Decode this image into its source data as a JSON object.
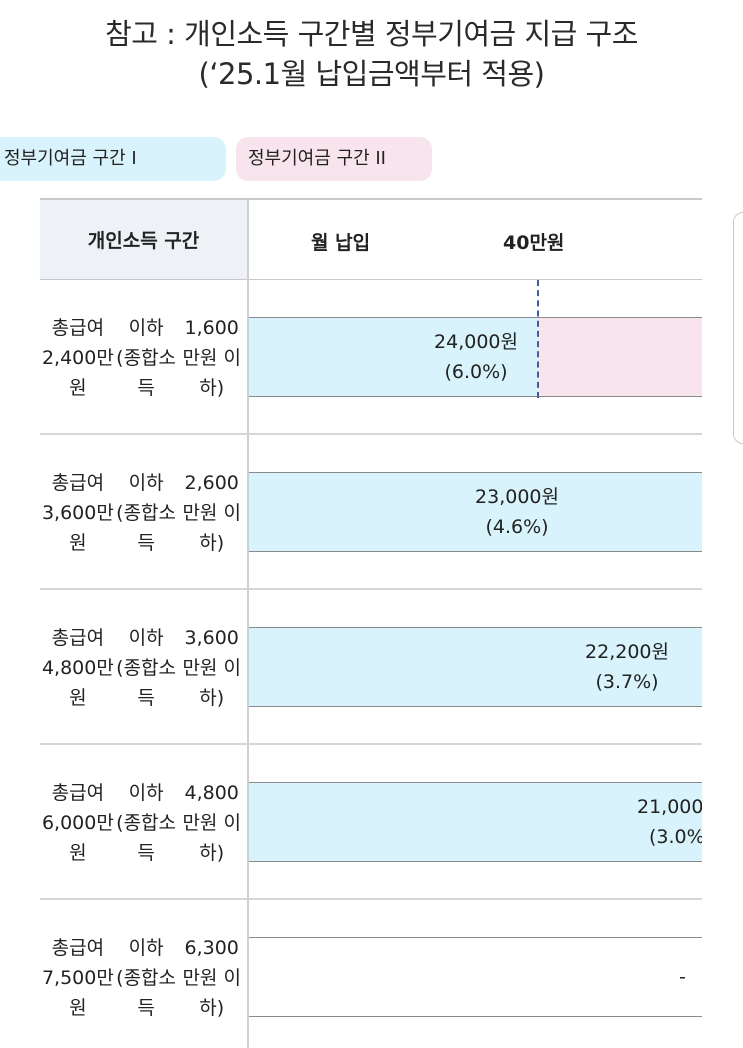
{
  "title_line1": "참고 : 개인소득 구간별 정부기여금 지급 구조",
  "title_line2": "(‘25.1월 납입금액부터 적용)",
  "legend": [
    {
      "label": "정부기여금 구간 I",
      "color": "#d8f3fb"
    },
    {
      "label": "정부기여금 구간 II",
      "color": "#f7e4ec"
    }
  ],
  "table": {
    "header_left": "개인소득 구간",
    "header_monthly": "월 납입",
    "header_tick": "40만원"
  },
  "chart_data": {
    "type": "bar",
    "categories": [
      "총급여 2,400만원 이하 (종합소득 1,600만원 이하)",
      "총급여 3,600만원 이하 (종합소득 2,600만원 이하)",
      "총급여 4,800만원 이하 (종합소득 3,600만원 이하)",
      "총급여 6,000만원 이하 (종합소득 4,800만원 이하)",
      "총급여 7,500만원 이하 (종합소득 6,300만원 이하)"
    ],
    "rows": [
      {
        "line1": "총급여 2,400만원",
        "line2": "이하 (종합소득",
        "line3": "1,600만원 이하)",
        "amount": "24,000원",
        "rate": "(6.0%)",
        "rate_value": 6.0,
        "zone2": true
      },
      {
        "line1": "총급여 3,600만원",
        "line2": "이하 (종합소득",
        "line3": "2,600만원 이하)",
        "amount": "23,000원",
        "rate": "(4.6%)",
        "rate_value": 4.6,
        "zone2": false
      },
      {
        "line1": "총급여 4,800만원",
        "line2": "이하 (종합소득",
        "line3": "3,600만원 이하)",
        "amount": "22,200원",
        "rate": "(3.7%)",
        "rate_value": 3.7,
        "zone2": false
      },
      {
        "line1": "총급여 6,000만원",
        "line2": "이하 (종합소득",
        "line3": "4,800만원 이하)",
        "amount": "21,000원",
        "rate": "(3.0%)",
        "rate_value": 3.0,
        "zone2": false
      },
      {
        "line1": "총급여 7,500만원",
        "line2": "이하 (종합소득",
        "line3": "6,300만원 이하)",
        "amount": "",
        "rate": "-",
        "rate_value": 0,
        "zone2": false
      }
    ],
    "colors": {
      "zone1": "#d8f3fb",
      "zone2": "#f7e4ec"
    }
  }
}
